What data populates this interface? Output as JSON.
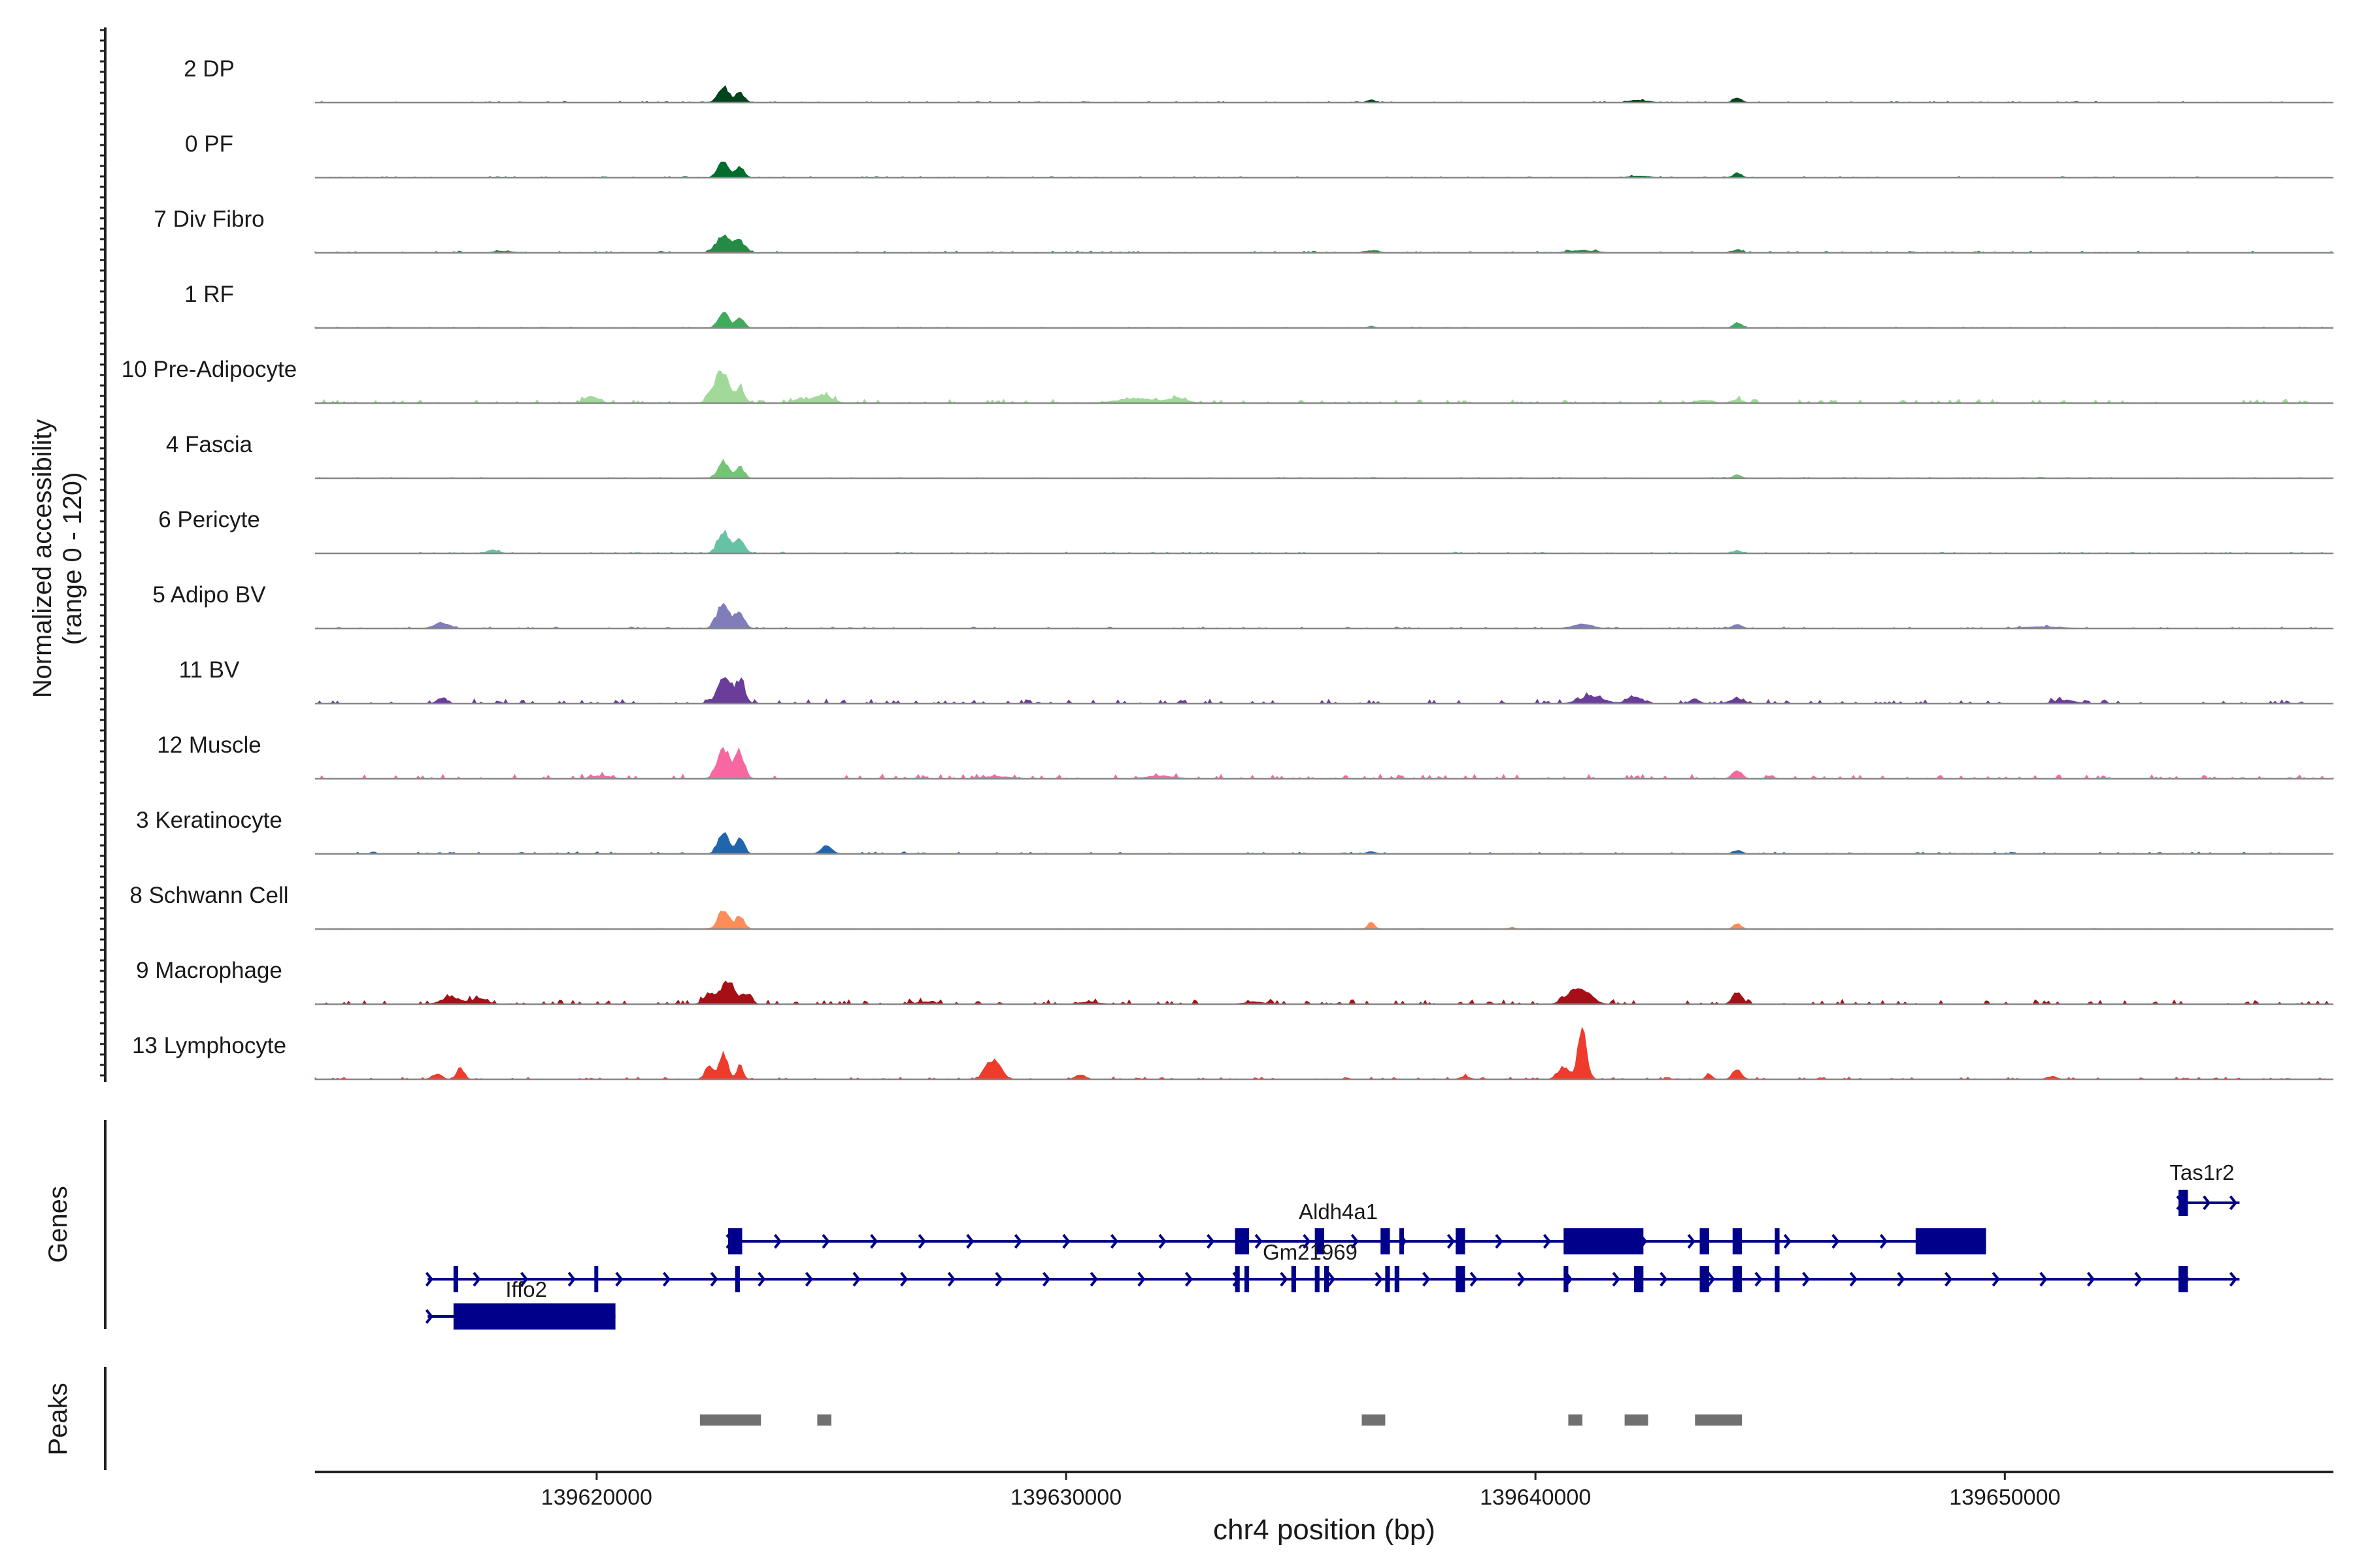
{
  "chart_data": {
    "type": "genome-coverage",
    "xlabel": "chr4 position (bp)",
    "ylabel_line1": "Normalized accessibility",
    "ylabel_line2": "(range 0 - 120)",
    "y_range": [
      0,
      120
    ],
    "x_range": [
      139614000,
      139657000
    ],
    "x_ticks": [
      {
        "value": 139620000,
        "label": "139620000"
      },
      {
        "value": 139630000,
        "label": "139630000"
      },
      {
        "value": 139640000,
        "label": "139640000"
      },
      {
        "value": 139650000,
        "label": "139650000"
      }
    ],
    "genes_label": "Genes",
    "peaks_label": "Peaks",
    "tracks": [
      {
        "name": "2 DP",
        "color": "#00441b",
        "noise": 0.6,
        "peaks": [
          [
            139622700,
            28,
            110
          ],
          [
            139623050,
            18,
            90
          ],
          [
            139636500,
            5,
            80
          ],
          [
            139642200,
            4,
            200
          ],
          [
            139644300,
            8,
            90
          ]
        ]
      },
      {
        "name": "0 PF",
        "color": "#006d2c",
        "noise": 0.6,
        "peaks": [
          [
            139622700,
            30,
            110
          ],
          [
            139623050,
            20,
            90
          ],
          [
            139642200,
            3,
            200
          ],
          [
            139644300,
            8,
            90
          ]
        ]
      },
      {
        "name": "7 Div Fibro",
        "color": "#238b45",
        "noise": 1.0,
        "peaks": [
          [
            139622700,
            30,
            150
          ],
          [
            139623050,
            20,
            110
          ],
          [
            139618000,
            3,
            200
          ],
          [
            139636500,
            4,
            150
          ],
          [
            139641000,
            4,
            300
          ],
          [
            139644300,
            5,
            100
          ]
        ]
      },
      {
        "name": "1 RF",
        "color": "#41ab5d",
        "noise": 0.6,
        "peaks": [
          [
            139622700,
            28,
            110
          ],
          [
            139623050,
            18,
            90
          ],
          [
            139636500,
            3,
            80
          ],
          [
            139644300,
            9,
            90
          ]
        ]
      },
      {
        "name": "10 Pre-Adipocyte",
        "color": "#a1d99b",
        "noise": 2.0,
        "peaks": [
          [
            139622700,
            48,
            120
          ],
          [
            139622500,
            22,
            120
          ],
          [
            139623050,
            24,
            100
          ],
          [
            139619900,
            12,
            150
          ],
          [
            139624800,
            14,
            200
          ],
          [
            139624300,
            6,
            150
          ],
          [
            139631500,
            8,
            400
          ],
          [
            139632400,
            8,
            200
          ],
          [
            139644300,
            6,
            120
          ],
          [
            139643600,
            5,
            200
          ]
        ]
      },
      {
        "name": "4 Fascia",
        "color": "#74c476",
        "noise": 0.6,
        "peaks": [
          [
            139622700,
            30,
            110
          ],
          [
            139623050,
            20,
            90
          ],
          [
            139644300,
            6,
            90
          ]
        ]
      },
      {
        "name": "6 Pericyte",
        "color": "#66c2a4",
        "noise": 0.7,
        "peaks": [
          [
            139622700,
            38,
            120
          ],
          [
            139623050,
            26,
            100
          ],
          [
            139617800,
            6,
            120
          ],
          [
            139644300,
            5,
            90
          ]
        ]
      },
      {
        "name": "5 Adipo BV",
        "color": "#807dba",
        "noise": 0.9,
        "peaks": [
          [
            139622700,
            44,
            130
          ],
          [
            139623050,
            28,
            100
          ],
          [
            139616700,
            10,
            160
          ],
          [
            139641000,
            8,
            200
          ],
          [
            139644300,
            7,
            100
          ],
          [
            139650800,
            3,
            400
          ]
        ]
      },
      {
        "name": "11 BV",
        "color": "#6a3d9a",
        "noise": 2.4,
        "peaks": [
          [
            139622700,
            48,
            130
          ],
          [
            139623050,
            42,
            100
          ],
          [
            139616700,
            10,
            100
          ],
          [
            139641200,
            13,
            250
          ],
          [
            139642100,
            12,
            150
          ],
          [
            139644300,
            8,
            150
          ],
          [
            139643400,
            8,
            100
          ],
          [
            139651300,
            6,
            200
          ]
        ]
      },
      {
        "name": "12 Muscle",
        "color": "#f768a1",
        "noise": 2.4,
        "peaks": [
          [
            139622700,
            50,
            130
          ],
          [
            139623050,
            46,
            100
          ],
          [
            139620100,
            5,
            200
          ],
          [
            139628500,
            4,
            300
          ],
          [
            139632000,
            5,
            300
          ],
          [
            139644300,
            14,
            100
          ],
          [
            139645000,
            5,
            80
          ]
        ]
      },
      {
        "name": "3 Keratinocyte",
        "color": "#2166ac",
        "noise": 1.1,
        "peaks": [
          [
            139622700,
            40,
            110
          ],
          [
            139623050,
            28,
            90
          ],
          [
            139624900,
            16,
            110
          ],
          [
            139636500,
            4,
            100
          ],
          [
            139644300,
            6,
            100
          ]
        ]
      },
      {
        "name": "8 Schwann Cell",
        "color": "#fc8d59",
        "noise": 0.4,
        "peaks": [
          [
            139622700,
            34,
            110
          ],
          [
            139623050,
            24,
            90
          ],
          [
            139636500,
            12,
            70
          ],
          [
            139644300,
            9,
            80
          ],
          [
            139639500,
            3,
            60
          ]
        ]
      },
      {
        "name": "9 Macrophage",
        "color": "#a50f15",
        "noise": 2.5,
        "peaks": [
          [
            139622800,
            40,
            150
          ],
          [
            139622400,
            16,
            120
          ],
          [
            139623200,
            16,
            100
          ],
          [
            139616900,
            12,
            200
          ],
          [
            139617500,
            10,
            150
          ],
          [
            139641000,
            22,
            200
          ],
          [
            139640700,
            12,
            150
          ],
          [
            139644300,
            22,
            100
          ],
          [
            139627000,
            4,
            200
          ],
          [
            139630500,
            4,
            200
          ],
          [
            139634000,
            4,
            200
          ]
        ]
      },
      {
        "name": "13 Lymphocyte",
        "color": "#ef3b2c",
        "noise": 1.2,
        "peaks": [
          [
            139641000,
            86,
            90
          ],
          [
            139640600,
            22,
            120
          ],
          [
            139622700,
            44,
            90
          ],
          [
            139622400,
            22,
            90
          ],
          [
            139623050,
            24,
            70
          ],
          [
            139616600,
            10,
            100
          ],
          [
            139617100,
            20,
            80
          ],
          [
            139628500,
            34,
            130
          ],
          [
            139628300,
            14,
            100
          ],
          [
            139644300,
            18,
            90
          ],
          [
            139643700,
            8,
            70
          ],
          [
            139638500,
            5,
            100
          ],
          [
            139630300,
            8,
            100
          ],
          [
            139651000,
            5,
            100
          ]
        ]
      }
    ],
    "genes": [
      {
        "name": "Aldh4a1",
        "row": 1,
        "start": 139622800,
        "end": 139649600,
        "strand": "+",
        "exons": [
          [
            139622800,
            139623100
          ],
          [
            139633600,
            139633900
          ],
          [
            139635300,
            139635500
          ],
          [
            139636700,
            139636900
          ],
          [
            139637100,
            139637200
          ],
          [
            139638300,
            139638500
          ],
          [
            139640600,
            139642300
          ],
          [
            139643500,
            139643700
          ],
          [
            139644200,
            139644400
          ],
          [
            139645100,
            139645200
          ],
          [
            139648100,
            139649600
          ]
        ],
        "label_at": 139635300,
        "label_row": 0
      },
      {
        "name": "Gm21969",
        "row": 2,
        "start": 139616400,
        "end": 139655000,
        "strand": "+",
        "exons": [
          [
            139616950,
            139617050
          ],
          [
            139619950,
            139620000
          ],
          [
            139622950,
            139623050
          ],
          [
            139633600,
            139633700
          ],
          [
            139633800,
            139633900
          ],
          [
            139634800,
            139634900
          ],
          [
            139635300,
            139635400
          ],
          [
            139635500,
            139635600
          ],
          [
            139636800,
            139636900
          ],
          [
            139637000,
            139637100
          ],
          [
            139638300,
            139638500
          ],
          [
            139640600,
            139640700
          ],
          [
            139642100,
            139642300
          ],
          [
            139643500,
            139643700
          ],
          [
            139644200,
            139644400
          ],
          [
            139645100,
            139645200
          ],
          [
            139653700,
            139653900
          ]
        ],
        "label_at": 139634200,
        "label_row": 1
      },
      {
        "name": "Iffo2",
        "row": 3,
        "start": 139616400,
        "end": 139620400,
        "strand": "+",
        "exons": [
          [
            139616950,
            139620400
          ]
        ],
        "label_at": 139617500,
        "label_row": 2
      },
      {
        "name": "Tas1r2",
        "row": 0,
        "start": 139653700,
        "end": 139655000,
        "strand": "+",
        "exons": [
          [
            139653700,
            139653900
          ]
        ],
        "label_at": 139653600,
        "label_row": -1
      }
    ],
    "peaks": [
      [
        139622200,
        139623500
      ],
      [
        139624700,
        139625000
      ],
      [
        139636300,
        139636800
      ],
      [
        139640700,
        139641000
      ],
      [
        139641900,
        139642400
      ],
      [
        139643400,
        139644400
      ]
    ]
  }
}
